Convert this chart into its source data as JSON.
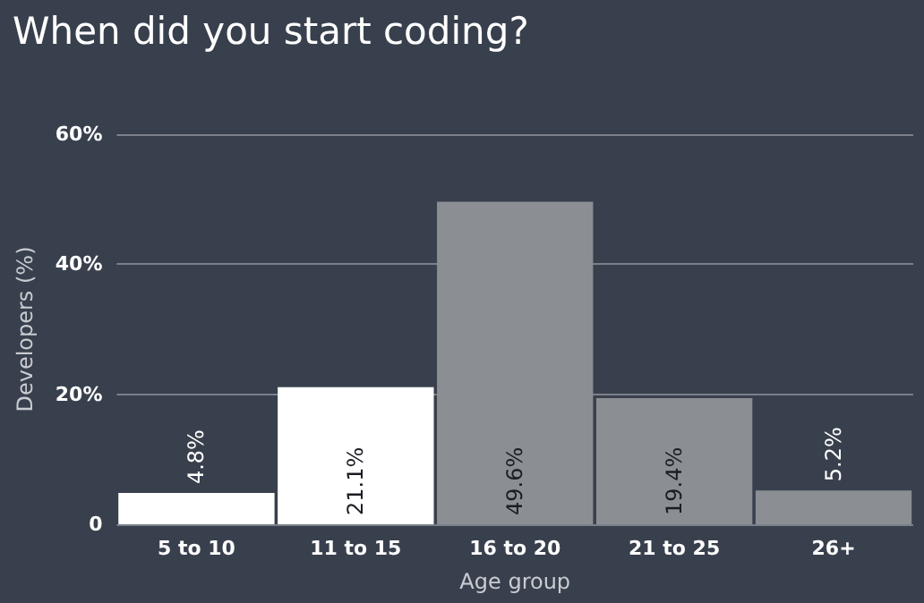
{
  "chart_data": {
    "type": "bar",
    "title": "When did you start coding?",
    "xlabel": "Age group",
    "ylabel": "Developers (%)",
    "categories": [
      "5 to 10",
      "11 to 15",
      "16 to 20",
      "21 to 25",
      "26+"
    ],
    "values": [
      4.8,
      21.1,
      49.6,
      19.4,
      5.2
    ],
    "value_labels": [
      "4.8%",
      "21.1%",
      "49.6%",
      "19.4%",
      "5.2%"
    ],
    "colors": [
      "#ffffff",
      "#ffffff",
      "#8b8e93",
      "#8b8e93",
      "#8b8e93"
    ],
    "ylim": [
      0,
      60
    ],
    "yticks": [
      {
        "value": 0,
        "label": "0"
      },
      {
        "value": 20,
        "label": "20%"
      },
      {
        "value": 40,
        "label": "40%"
      },
      {
        "value": 60,
        "label": "60%"
      }
    ],
    "grid": "y"
  }
}
